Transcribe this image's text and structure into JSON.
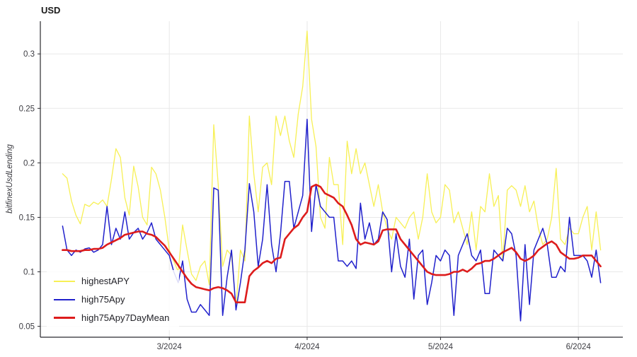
{
  "chart_data": {
    "type": "line",
    "title": "USD",
    "xlabel": "",
    "ylabel": "bitfinexUsdLending",
    "grid": true,
    "legend_position": "bottom-left",
    "xlim": [
      -5,
      126
    ],
    "ylim": [
      0.04,
      0.33
    ],
    "yticks": [
      {
        "v": 0.05,
        "label": "0.05"
      },
      {
        "v": 0.1,
        "label": "0.1"
      },
      {
        "v": 0.15,
        "label": "0.15"
      },
      {
        "v": 0.2,
        "label": "0.2"
      },
      {
        "v": 0.25,
        "label": "0.25"
      },
      {
        "v": 0.3,
        "label": "0.3"
      }
    ],
    "xticks": [
      {
        "v": 24,
        "label": "3/2024"
      },
      {
        "v": 55,
        "label": "4/2024"
      },
      {
        "v": 85,
        "label": "5/2024"
      },
      {
        "v": 116,
        "label": "6/2024"
      }
    ],
    "x_unit": "day-index from ~2024-02-06, daily samples",
    "series": [
      {
        "name": "highestAPY",
        "color": "#f7f055",
        "width": 1.3,
        "values": [
          0.19,
          0.186,
          0.165,
          0.152,
          0.144,
          0.162,
          0.16,
          0.164,
          0.162,
          0.166,
          0.16,
          0.185,
          0.213,
          0.205,
          0.168,
          0.152,
          0.197,
          0.178,
          0.15,
          0.143,
          0.196,
          0.19,
          0.175,
          0.15,
          0.12,
          0.11,
          0.1,
          0.143,
          0.12,
          0.098,
          0.092,
          0.105,
          0.11,
          0.088,
          0.235,
          0.18,
          0.105,
          0.12,
          0.115,
          0.068,
          0.12,
          0.11,
          0.243,
          0.19,
          0.155,
          0.196,
          0.2,
          0.18,
          0.243,
          0.225,
          0.243,
          0.22,
          0.205,
          0.245,
          0.27,
          0.321,
          0.24,
          0.215,
          0.15,
          0.14,
          0.205,
          0.18,
          0.18,
          0.125,
          0.22,
          0.19,
          0.213,
          0.19,
          0.2,
          0.18,
          0.16,
          0.18,
          0.155,
          0.14,
          0.13,
          0.15,
          0.145,
          0.14,
          0.15,
          0.155,
          0.13,
          0.15,
          0.19,
          0.155,
          0.145,
          0.15,
          0.18,
          0.175,
          0.145,
          0.155,
          0.14,
          0.125,
          0.155,
          0.12,
          0.16,
          0.155,
          0.19,
          0.16,
          0.17,
          0.11,
          0.175,
          0.179,
          0.175,
          0.16,
          0.179,
          0.155,
          0.165,
          0.14,
          0.125,
          0.13,
          0.15,
          0.195,
          0.13,
          0.125,
          0.14,
          0.135,
          0.135,
          0.15,
          0.16,
          0.12,
          0.155,
          0.12
        ]
      },
      {
        "name": "high75Apy",
        "color": "#2121cc",
        "width": 1.5,
        "values": [
          0.142,
          0.12,
          0.115,
          0.12,
          0.118,
          0.121,
          0.122,
          0.118,
          0.12,
          0.125,
          0.16,
          0.125,
          0.14,
          0.13,
          0.155,
          0.13,
          0.136,
          0.14,
          0.13,
          0.136,
          0.145,
          0.13,
          0.125,
          0.12,
          0.115,
          0.1,
          0.09,
          0.11,
          0.075,
          0.063,
          0.063,
          0.07,
          0.065,
          0.06,
          0.177,
          0.175,
          0.06,
          0.095,
          0.12,
          0.065,
          0.09,
          0.12,
          0.181,
          0.155,
          0.105,
          0.13,
          0.18,
          0.125,
          0.1,
          0.135,
          0.183,
          0.183,
          0.14,
          0.155,
          0.17,
          0.24,
          0.137,
          0.18,
          0.16,
          0.155,
          0.15,
          0.15,
          0.11,
          0.11,
          0.105,
          0.11,
          0.103,
          0.163,
          0.13,
          0.145,
          0.125,
          0.13,
          0.155,
          0.148,
          0.1,
          0.135,
          0.105,
          0.095,
          0.13,
          0.075,
          0.115,
          0.12,
          0.07,
          0.09,
          0.115,
          0.11,
          0.12,
          0.115,
          0.06,
          0.115,
          0.125,
          0.135,
          0.115,
          0.11,
          0.12,
          0.08,
          0.08,
          0.12,
          0.115,
          0.11,
          0.14,
          0.135,
          0.115,
          0.055,
          0.125,
          0.07,
          0.12,
          0.13,
          0.14,
          0.125,
          0.095,
          0.095,
          0.105,
          0.1,
          0.15,
          0.115,
          0.115,
          0.115,
          0.11,
          0.095,
          0.12,
          0.09
        ]
      },
      {
        "name": "high75Apy7DayMean",
        "color": "#dd1c1c",
        "width": 2.6,
        "values": [
          0.12,
          0.12,
          0.119,
          0.119,
          0.119,
          0.12,
          0.12,
          0.121,
          0.121,
          0.122,
          0.125,
          0.127,
          0.129,
          0.131,
          0.134,
          0.135,
          0.136,
          0.137,
          0.137,
          0.135,
          0.134,
          0.132,
          0.128,
          0.124,
          0.118,
          0.112,
          0.106,
          0.1,
          0.094,
          0.089,
          0.086,
          0.085,
          0.084,
          0.083,
          0.085,
          0.086,
          0.085,
          0.083,
          0.08,
          0.072,
          0.072,
          0.072,
          0.096,
          0.101,
          0.104,
          0.108,
          0.11,
          0.108,
          0.112,
          0.113,
          0.13,
          0.135,
          0.14,
          0.143,
          0.15,
          0.155,
          0.178,
          0.18,
          0.178,
          0.172,
          0.17,
          0.168,
          0.163,
          0.16,
          0.152,
          0.143,
          0.13,
          0.125,
          0.127,
          0.126,
          0.125,
          0.128,
          0.138,
          0.139,
          0.139,
          0.139,
          0.13,
          0.125,
          0.12,
          0.115,
          0.11,
          0.105,
          0.1,
          0.098,
          0.097,
          0.097,
          0.097,
          0.098,
          0.1,
          0.1,
          0.102,
          0.1,
          0.103,
          0.107,
          0.108,
          0.11,
          0.11,
          0.112,
          0.115,
          0.118,
          0.12,
          0.122,
          0.118,
          0.112,
          0.11,
          0.112,
          0.115,
          0.12,
          0.123,
          0.126,
          0.128,
          0.125,
          0.118,
          0.115,
          0.112,
          0.112,
          0.113,
          0.115,
          0.115,
          0.115,
          0.11,
          0.105
        ]
      }
    ],
    "colors": {
      "grid": "#e8e8e8",
      "axis": "#2b2b30",
      "tick_text": "#3c3c42"
    }
  }
}
